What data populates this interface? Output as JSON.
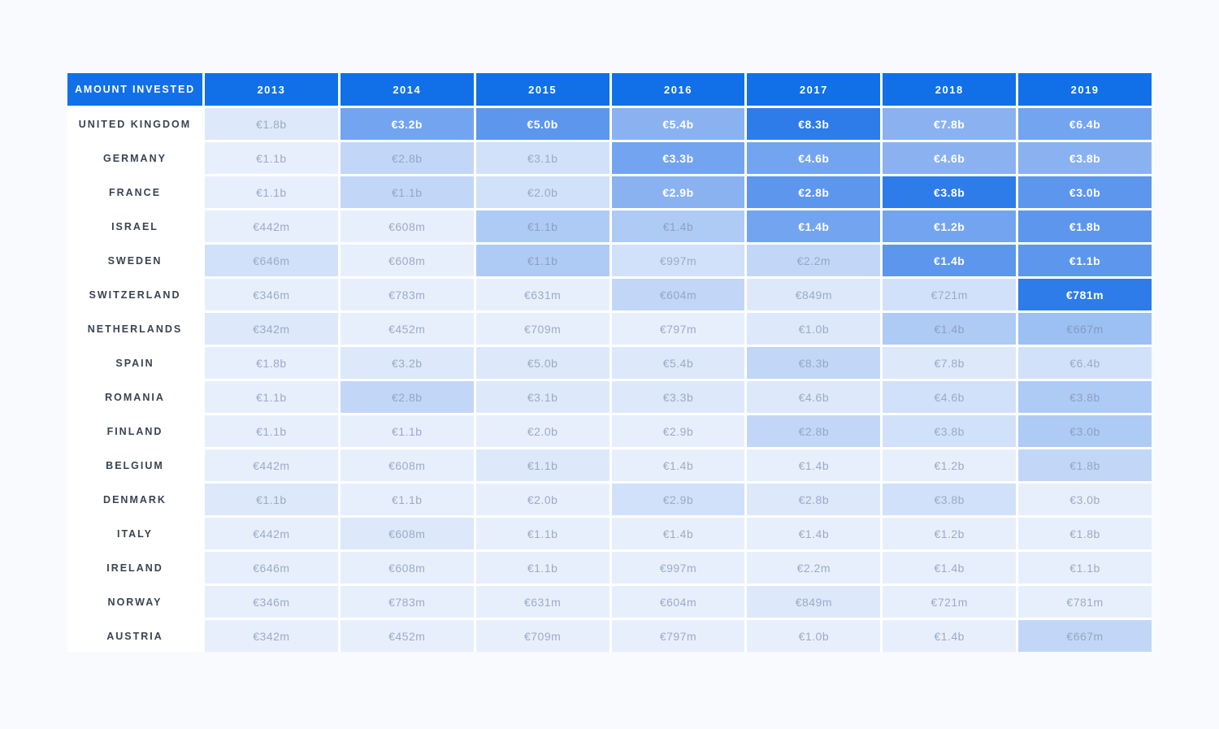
{
  "chart_data": {
    "type": "heatmap",
    "title": "AMOUNT INVESTED",
    "columns": [
      "2013",
      "2014",
      "2015",
      "2016",
      "2017",
      "2018",
      "2019"
    ],
    "rows": [
      {
        "country": "UNITED KINGDOM",
        "values": [
          "€1.8b",
          "€3.2b",
          "€5.0b",
          "€5.4b",
          "€8.3b",
          "€7.8b",
          "€6.4b"
        ],
        "shades": [
          1,
          7,
          8,
          6,
          10,
          6,
          7
        ]
      },
      {
        "country": "GERMANY",
        "values": [
          "€1.1b",
          "€2.8b",
          "€3.1b",
          "€3.3b",
          "€4.6b",
          "€4.6b",
          "€3.8b"
        ],
        "shades": [
          0,
          3,
          2,
          7,
          7,
          6,
          6
        ]
      },
      {
        "country": "FRANCE",
        "values": [
          "€1.1b",
          "€1.1b",
          "€2.0b",
          "€2.9b",
          "€2.8b",
          "€3.8b",
          "€3.0b"
        ],
        "shades": [
          0,
          3,
          2,
          6,
          8,
          10,
          8
        ]
      },
      {
        "country": "ISRAEL",
        "values": [
          "€442m",
          "€608m",
          "€1.1b",
          "€1.4b",
          "€1.4b",
          "€1.2b",
          "€1.8b"
        ],
        "shades": [
          0,
          0,
          4,
          4,
          7,
          7,
          8
        ]
      },
      {
        "country": "SWEDEN",
        "values": [
          "€646m",
          "€608m",
          "€1.1b",
          "€997m",
          "€2.2m",
          "€1.4b",
          "€1.1b"
        ],
        "shades": [
          2,
          0,
          4,
          2,
          3,
          8,
          8
        ]
      },
      {
        "country": "SWITZERLAND",
        "values": [
          "€346m",
          "€783m",
          "€631m",
          "€604m",
          "€849m",
          "€721m",
          "€781m"
        ],
        "shades": [
          0,
          0,
          0,
          3,
          1,
          2,
          10
        ]
      },
      {
        "country": "NETHERLANDS",
        "values": [
          "€342m",
          "€452m",
          "€709m",
          "€797m",
          "€1.0b",
          "€1.4b",
          "€667m"
        ],
        "shades": [
          1,
          0,
          0,
          0,
          1,
          4,
          5
        ]
      },
      {
        "country": "SPAIN",
        "values": [
          "€1.8b",
          "€3.2b",
          "€5.0b",
          "€5.4b",
          "€8.3b",
          "€7.8b",
          "€6.4b"
        ],
        "shades": [
          0,
          1,
          1,
          1,
          3,
          1,
          2
        ]
      },
      {
        "country": "ROMANIA",
        "values": [
          "€1.1b",
          "€2.8b",
          "€3.1b",
          "€3.3b",
          "€4.6b",
          "€4.6b",
          "€3.8b"
        ],
        "shades": [
          0,
          3,
          1,
          1,
          1,
          2,
          4
        ]
      },
      {
        "country": "FINLAND",
        "values": [
          "€1.1b",
          "€1.1b",
          "€2.0b",
          "€2.9b",
          "€2.8b",
          "€3.8b",
          "€3.0b"
        ],
        "shades": [
          0,
          0,
          0,
          0,
          3,
          2,
          4
        ]
      },
      {
        "country": "BELGIUM",
        "values": [
          "€442m",
          "€608m",
          "€1.1b",
          "€1.4b",
          "€1.4b",
          "€1.2b",
          "€1.8b"
        ],
        "shades": [
          0,
          0,
          1,
          0,
          0,
          0,
          3
        ]
      },
      {
        "country": "DENMARK",
        "values": [
          "€1.1b",
          "€1.1b",
          "€2.0b",
          "€2.9b",
          "€2.8b",
          "€3.8b",
          "€3.0b"
        ],
        "shades": [
          1,
          0,
          0,
          2,
          1,
          2,
          0
        ]
      },
      {
        "country": "ITALY",
        "values": [
          "€442m",
          "€608m",
          "€1.1b",
          "€1.4b",
          "€1.4b",
          "€1.2b",
          "€1.8b"
        ],
        "shades": [
          0,
          1,
          0,
          0,
          0,
          0,
          0
        ]
      },
      {
        "country": "IRELAND",
        "values": [
          "€646m",
          "€608m",
          "€1.1b",
          "€997m",
          "€2.2m",
          "€1.4b",
          "€1.1b"
        ],
        "shades": [
          0,
          0,
          0,
          0,
          0,
          0,
          0
        ]
      },
      {
        "country": "NORWAY",
        "values": [
          "€346m",
          "€783m",
          "€631m",
          "€604m",
          "€849m",
          "€721m",
          "€781m"
        ],
        "shades": [
          0,
          0,
          0,
          0,
          1,
          0,
          0
        ]
      },
      {
        "country": "AUSTRIA",
        "values": [
          "€342m",
          "€452m",
          "€709m",
          "€797m",
          "€1.0b",
          "€1.4b",
          "€667m"
        ],
        "shades": [
          0,
          0,
          0,
          0,
          0,
          0,
          3
        ]
      }
    ]
  },
  "palette": {
    "page_bg": "#f8fafd",
    "header_bg": "#1170e8",
    "header_text": "#ffffff",
    "label_bg": "#ffffff",
    "label_text": "#3a4352",
    "levels": [
      {
        "bg": "#e8effc",
        "text": "#9aabc6"
      },
      {
        "bg": "#dde8fb",
        "text": "#9aabc6"
      },
      {
        "bg": "#d1e1f9",
        "text": "#9aabc6"
      },
      {
        "bg": "#c2d7f8",
        "text": "#94a6c4"
      },
      {
        "bg": "#aecbf6",
        "text": "#8d9fc2"
      },
      {
        "bg": "#9cc0f3",
        "text": "#8499c5"
      },
      {
        "bg": "#8ab2f1",
        "text": "#ffffff"
      },
      {
        "bg": "#73a4ef",
        "text": "#ffffff"
      },
      {
        "bg": "#5d96ed",
        "text": "#ffffff"
      },
      {
        "bg": "#4285ec",
        "text": "#ffffff"
      },
      {
        "bg": "#2e7bea",
        "text": "#ffffff"
      }
    ]
  }
}
